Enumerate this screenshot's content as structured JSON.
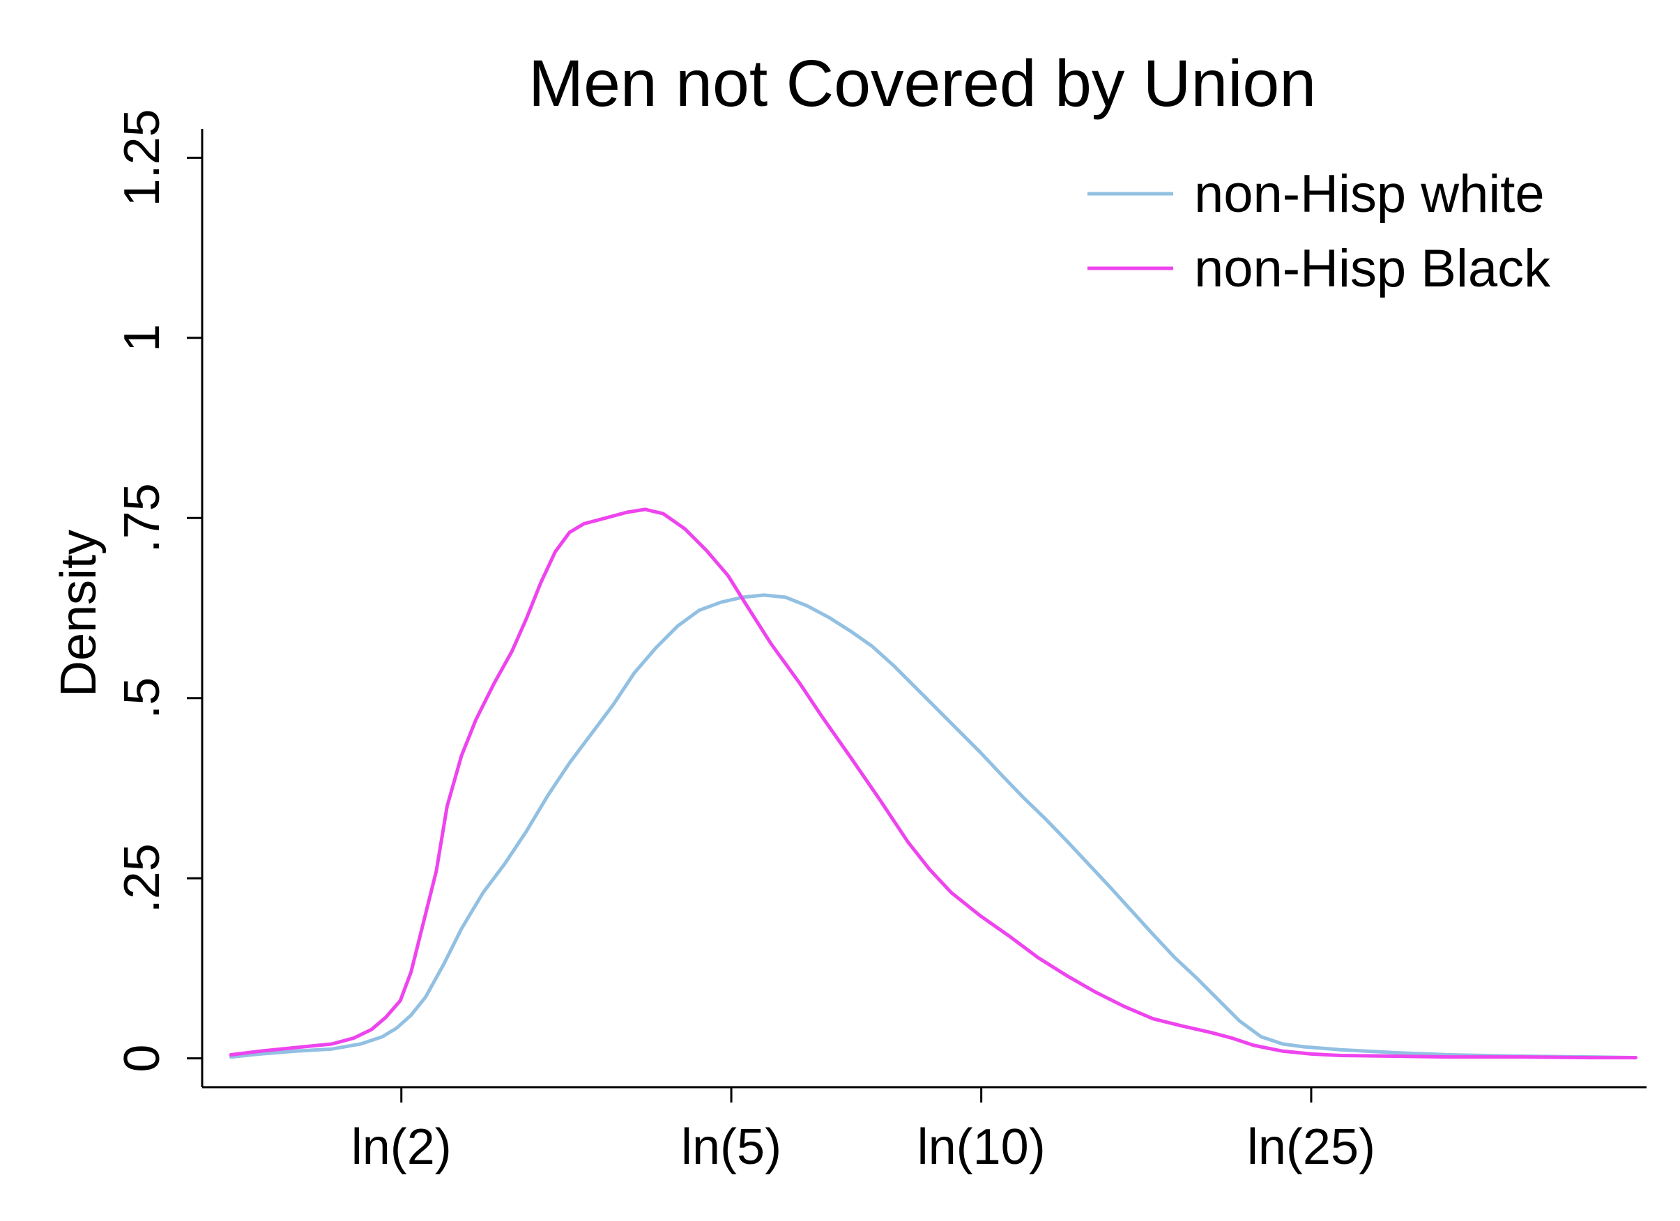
{
  "chart_data": {
    "type": "line",
    "title": "Men not Covered by Union",
    "xlabel": "",
    "ylabel": "Density",
    "xlim": [
      0.14,
      4.15
    ],
    "ylim": [
      -0.04,
      1.29
    ],
    "x_ticks": [
      {
        "value": 0.693,
        "label": "ln(2)"
      },
      {
        "value": 1.609,
        "label": "ln(5)"
      },
      {
        "value": 2.303,
        "label": "ln(10)"
      },
      {
        "value": 3.219,
        "label": "ln(25)"
      }
    ],
    "y_ticks": [
      {
        "value": 0,
        "label": "0"
      },
      {
        "value": 0.25,
        "label": ".25"
      },
      {
        "value": 0.5,
        "label": ".5"
      },
      {
        "value": 0.75,
        "label": ".75"
      },
      {
        "value": 1,
        "label": "1"
      },
      {
        "value": 1.25,
        "label": "1.25"
      }
    ],
    "grid": false,
    "legend_position": "top-right",
    "series": [
      {
        "name": "non-Hisp white",
        "color": "#92C0E2",
        "points": [
          [
            0.22,
            0.002
          ],
          [
            0.3,
            0.006
          ],
          [
            0.4,
            0.01
          ],
          [
            0.5,
            0.013
          ],
          [
            0.58,
            0.02
          ],
          [
            0.64,
            0.03
          ],
          [
            0.68,
            0.042
          ],
          [
            0.72,
            0.06
          ],
          [
            0.76,
            0.085
          ],
          [
            0.81,
            0.13
          ],
          [
            0.86,
            0.18
          ],
          [
            0.92,
            0.23
          ],
          [
            0.98,
            0.27
          ],
          [
            1.04,
            0.315
          ],
          [
            1.1,
            0.365
          ],
          [
            1.16,
            0.41
          ],
          [
            1.22,
            0.45
          ],
          [
            1.28,
            0.49
          ],
          [
            1.34,
            0.535
          ],
          [
            1.4,
            0.57
          ],
          [
            1.46,
            0.6
          ],
          [
            1.52,
            0.622
          ],
          [
            1.58,
            0.633
          ],
          [
            1.64,
            0.64
          ],
          [
            1.7,
            0.643
          ],
          [
            1.76,
            0.64
          ],
          [
            1.82,
            0.628
          ],
          [
            1.88,
            0.612
          ],
          [
            1.94,
            0.593
          ],
          [
            2.0,
            0.572
          ],
          [
            2.06,
            0.545
          ],
          [
            2.12,
            0.515
          ],
          [
            2.18,
            0.485
          ],
          [
            2.24,
            0.455
          ],
          [
            2.3,
            0.425
          ],
          [
            2.36,
            0.393
          ],
          [
            2.42,
            0.362
          ],
          [
            2.48,
            0.333
          ],
          [
            2.54,
            0.302
          ],
          [
            2.6,
            0.27
          ],
          [
            2.66,
            0.238
          ],
          [
            2.72,
            0.205
          ],
          [
            2.78,
            0.172
          ],
          [
            2.84,
            0.14
          ],
          [
            2.9,
            0.112
          ],
          [
            2.96,
            0.082
          ],
          [
            3.02,
            0.052
          ],
          [
            3.08,
            0.03
          ],
          [
            3.14,
            0.02
          ],
          [
            3.2,
            0.016
          ],
          [
            3.3,
            0.012
          ],
          [
            3.45,
            0.008
          ],
          [
            3.6,
            0.005
          ],
          [
            3.8,
            0.003
          ],
          [
            4.0,
            0.002
          ],
          [
            4.12,
            0.001
          ]
        ]
      },
      {
        "name": "non-Hisp Black",
        "color": "#EE44EE",
        "points": [
          [
            0.22,
            0.005
          ],
          [
            0.3,
            0.01
          ],
          [
            0.4,
            0.015
          ],
          [
            0.5,
            0.02
          ],
          [
            0.56,
            0.028
          ],
          [
            0.61,
            0.04
          ],
          [
            0.65,
            0.057
          ],
          [
            0.69,
            0.08
          ],
          [
            0.72,
            0.12
          ],
          [
            0.75,
            0.18
          ],
          [
            0.79,
            0.26
          ],
          [
            0.82,
            0.35
          ],
          [
            0.86,
            0.42
          ],
          [
            0.9,
            0.47
          ],
          [
            0.95,
            0.52
          ],
          [
            1.0,
            0.565
          ],
          [
            1.04,
            0.61
          ],
          [
            1.08,
            0.66
          ],
          [
            1.12,
            0.703
          ],
          [
            1.16,
            0.73
          ],
          [
            1.2,
            0.742
          ],
          [
            1.26,
            0.75
          ],
          [
            1.32,
            0.758
          ],
          [
            1.37,
            0.762
          ],
          [
            1.42,
            0.756
          ],
          [
            1.48,
            0.735
          ],
          [
            1.54,
            0.705
          ],
          [
            1.6,
            0.67
          ],
          [
            1.65,
            0.63
          ],
          [
            1.72,
            0.575
          ],
          [
            1.8,
            0.52
          ],
          [
            1.86,
            0.475
          ],
          [
            1.94,
            0.418
          ],
          [
            2.02,
            0.36
          ],
          [
            2.1,
            0.3
          ],
          [
            2.16,
            0.262
          ],
          [
            2.22,
            0.23
          ],
          [
            2.3,
            0.198
          ],
          [
            2.38,
            0.17
          ],
          [
            2.46,
            0.14
          ],
          [
            2.54,
            0.115
          ],
          [
            2.62,
            0.092
          ],
          [
            2.7,
            0.072
          ],
          [
            2.78,
            0.055
          ],
          [
            2.86,
            0.045
          ],
          [
            2.94,
            0.036
          ],
          [
            3.0,
            0.028
          ],
          [
            3.06,
            0.018
          ],
          [
            3.14,
            0.01
          ],
          [
            3.22,
            0.006
          ],
          [
            3.3,
            0.004
          ],
          [
            3.45,
            0.003
          ],
          [
            3.6,
            0.002
          ],
          [
            3.8,
            0.002
          ],
          [
            4.0,
            0.001
          ],
          [
            4.12,
            0.001
          ]
        ]
      }
    ]
  }
}
